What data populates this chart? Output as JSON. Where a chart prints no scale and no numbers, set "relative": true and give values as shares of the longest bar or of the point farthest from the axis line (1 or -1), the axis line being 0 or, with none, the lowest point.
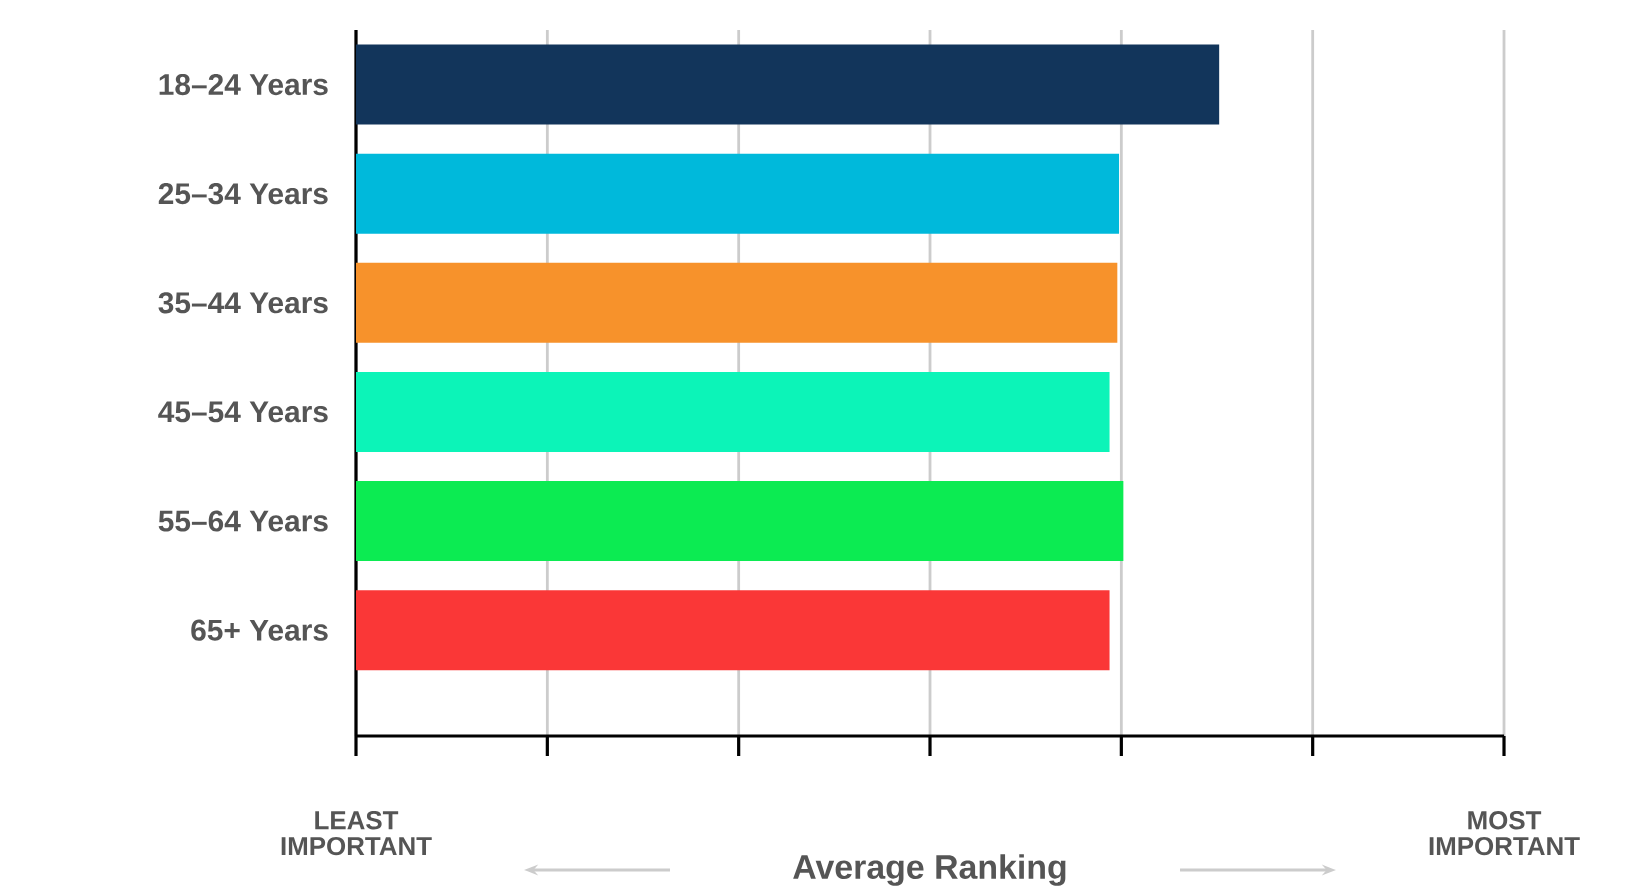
{
  "chart_data": {
    "type": "bar",
    "orientation": "horizontal",
    "relative": true,
    "categories": [
      "18–24 Years",
      "25–34 Years",
      "35–44 Years",
      "45–54 Years",
      "55–64 Years",
      "65+ Years"
    ],
    "values": [
      1,
      0.884,
      0.882,
      0.873,
      0.889,
      0.873
    ],
    "colors": [
      "#12355b",
      "#00b9db",
      "#f7922b",
      "#0cf4b8",
      "#0ceb52",
      "#fa3737"
    ],
    "xlabel": "Average Ranking",
    "annotations": [
      "LEAST IMPORTANT",
      "MOST IMPORTANT"
    ],
    "grid": "x"
  }
}
